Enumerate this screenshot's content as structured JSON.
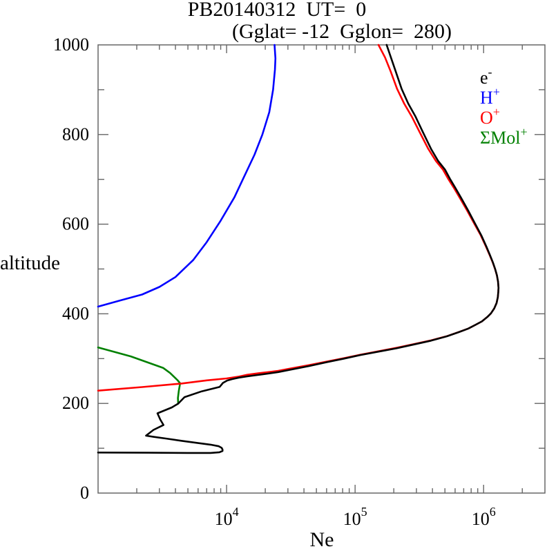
{
  "chart_data": {
    "type": "line",
    "title": "PB20140312  UT=  0",
    "subtitle": "(Gglat= -12  Gglon=  280)",
    "xlabel": "Ne",
    "ylabel": "altitude",
    "x_scale": "log",
    "xlim": [
      1000,
      3000000
    ],
    "ylim": [
      0,
      1000
    ],
    "grid": false,
    "legend_position": "top-right-inside",
    "x_ticks": [
      {
        "value": 10000,
        "base": "10",
        "exp": "4"
      },
      {
        "value": 100000,
        "base": "10",
        "exp": "5"
      },
      {
        "value": 1000000,
        "base": "10",
        "exp": "6"
      }
    ],
    "y_ticks": [
      {
        "value": 0,
        "label": "0"
      },
      {
        "value": 200,
        "label": "200"
      },
      {
        "value": 400,
        "label": "400"
      },
      {
        "value": 600,
        "label": "600"
      },
      {
        "value": 800,
        "label": "800"
      },
      {
        "value": 1000,
        "label": "1000"
      }
    ],
    "y_minor_step": 100,
    "legend": [
      {
        "name": "electron",
        "label": "e",
        "sup": "-",
        "color": "#000000"
      },
      {
        "name": "hydrogen-ion",
        "label": "H",
        "sup": "+",
        "color": "#0000ff"
      },
      {
        "name": "oxygen-ion",
        "label": "O",
        "sup": "+",
        "color": "#ff0000"
      },
      {
        "name": "molecular-ions",
        "label": "ΣMol",
        "sup": "+",
        "color": "#008000"
      }
    ],
    "series": [
      {
        "name": "electron",
        "color": "#000000",
        "points": [
          [
            1000,
            90.5
          ],
          [
            2500,
            90
          ],
          [
            5000,
            89.5
          ],
          [
            7500,
            89.5
          ],
          [
            8800,
            91
          ],
          [
            9300,
            94
          ],
          [
            9300,
            97
          ],
          [
            9150,
            101
          ],
          [
            8700,
            104.5
          ],
          [
            7500,
            108
          ],
          [
            6000,
            111.5
          ],
          [
            4500,
            116.5
          ],
          [
            3400,
            121.5
          ],
          [
            2700,
            125.5
          ],
          [
            2360,
            128
          ],
          [
            2700,
            141
          ],
          [
            3230,
            152
          ],
          [
            3050,
            164
          ],
          [
            2900,
            178
          ],
          [
            3750,
            191
          ],
          [
            4200,
            199.5
          ],
          [
            4700,
            214
          ],
          [
            6400,
            227
          ],
          [
            8840,
            237
          ],
          [
            9370,
            245.8
          ],
          [
            10120,
            251.2
          ],
          [
            11040,
            254.2
          ],
          [
            12490,
            257.6
          ],
          [
            14500,
            260.4
          ],
          [
            17440,
            263.5
          ],
          [
            20980,
            266.6
          ],
          [
            25200,
            270
          ],
          [
            30400,
            274.4
          ],
          [
            44000,
            283.5
          ],
          [
            60000,
            292
          ],
          [
            82000,
            300
          ],
          [
            110000,
            308
          ],
          [
            152000,
            315.5
          ],
          [
            210000,
            323
          ],
          [
            281000,
            331
          ],
          [
            390000,
            340
          ],
          [
            520000,
            350
          ],
          [
            640000,
            359
          ],
          [
            760000,
            367
          ],
          [
            860000,
            375
          ],
          [
            970000,
            383
          ],
          [
            1070000,
            393
          ],
          [
            1140000,
            401
          ],
          [
            1210000,
            412
          ],
          [
            1262000,
            424
          ],
          [
            1290000,
            437
          ],
          [
            1302000,
            449
          ],
          [
            1306000,
            458
          ],
          [
            1295000,
            472
          ],
          [
            1270000,
            486
          ],
          [
            1230000,
            500
          ],
          [
            1180000,
            515
          ],
          [
            1120000,
            531
          ],
          [
            1050000,
            550
          ],
          [
            960000,
            575
          ],
          [
            855000,
            602
          ],
          [
            760000,
            630
          ],
          [
            670000,
            658
          ],
          [
            600000,
            682
          ],
          [
            550000,
            700
          ],
          [
            500000,
            722
          ],
          [
            443000,
            741
          ],
          [
            390000,
            768
          ],
          [
            336000,
            806
          ],
          [
            295000,
            840
          ],
          [
            259000,
            869
          ],
          [
            230000,
            902
          ],
          [
            207000,
            941
          ],
          [
            190000,
            972
          ],
          [
            176000,
            1000
          ]
        ]
      },
      {
        "name": "hydrogen-ion",
        "color": "#0000ff",
        "points": [
          [
            1000,
            416
          ],
          [
            1500,
            430
          ],
          [
            2200,
            443
          ],
          [
            3000,
            460
          ],
          [
            4000,
            482
          ],
          [
            5500,
            520
          ],
          [
            7000,
            560
          ],
          [
            9000,
            608
          ],
          [
            11500,
            660
          ],
          [
            14000,
            712
          ],
          [
            16500,
            755
          ],
          [
            19000,
            800
          ],
          [
            21500,
            850
          ],
          [
            23000,
            900
          ],
          [
            23800,
            945
          ],
          [
            24000,
            970
          ],
          [
            23600,
            1000
          ]
        ]
      },
      {
        "name": "oxygen-ion",
        "color": "#ff0000",
        "points": [
          [
            1000,
            228.5
          ],
          [
            2200,
            236.5
          ],
          [
            4500,
            244.5
          ],
          [
            7000,
            251.5
          ],
          [
            10000,
            255.8
          ],
          [
            12500,
            260
          ],
          [
            14500,
            264
          ],
          [
            17400,
            267
          ],
          [
            21000,
            269.8
          ],
          [
            25200,
            272.8
          ],
          [
            30400,
            277
          ],
          [
            44000,
            285.5
          ],
          [
            60000,
            293.3
          ],
          [
            82000,
            301
          ],
          [
            110000,
            308.8
          ],
          [
            152000,
            316.3
          ],
          [
            210000,
            324
          ],
          [
            281000,
            331.7
          ],
          [
            390000,
            340.7
          ],
          [
            520000,
            350.3
          ],
          [
            640000,
            359.2
          ],
          [
            760000,
            367.1
          ],
          [
            860000,
            375
          ],
          [
            970000,
            383
          ],
          [
            1070000,
            393
          ],
          [
            1140000,
            401
          ],
          [
            1210000,
            412
          ],
          [
            1262000,
            424
          ],
          [
            1290000,
            437
          ],
          [
            1302000,
            449
          ],
          [
            1306000,
            458
          ],
          [
            1295000,
            472
          ],
          [
            1268000,
            486
          ],
          [
            1227000,
            500
          ],
          [
            1176000,
            515
          ],
          [
            1115000,
            531
          ],
          [
            1043000,
            550
          ],
          [
            950000,
            575
          ],
          [
            843000,
            602
          ],
          [
            746000,
            630
          ],
          [
            655000,
            658
          ],
          [
            584000,
            682
          ],
          [
            533000,
            700
          ],
          [
            482000,
            722
          ],
          [
            425000,
            741
          ],
          [
            371000,
            768
          ],
          [
            317000,
            806
          ],
          [
            276000,
            840
          ],
          [
            241000,
            869
          ],
          [
            212000,
            902
          ],
          [
            189000,
            941
          ],
          [
            171000,
            972
          ],
          [
            152000,
            1000
          ]
        ]
      },
      {
        "name": "molecular-ions",
        "color": "#008000",
        "points": [
          [
            1000,
            325
          ],
          [
            1800,
            305
          ],
          [
            3220,
            279
          ],
          [
            3630,
            268
          ],
          [
            4150,
            252
          ],
          [
            4350,
            245
          ],
          [
            4250,
            228
          ],
          [
            4180,
            212
          ],
          [
            4200,
            199.5
          ]
        ]
      }
    ]
  }
}
